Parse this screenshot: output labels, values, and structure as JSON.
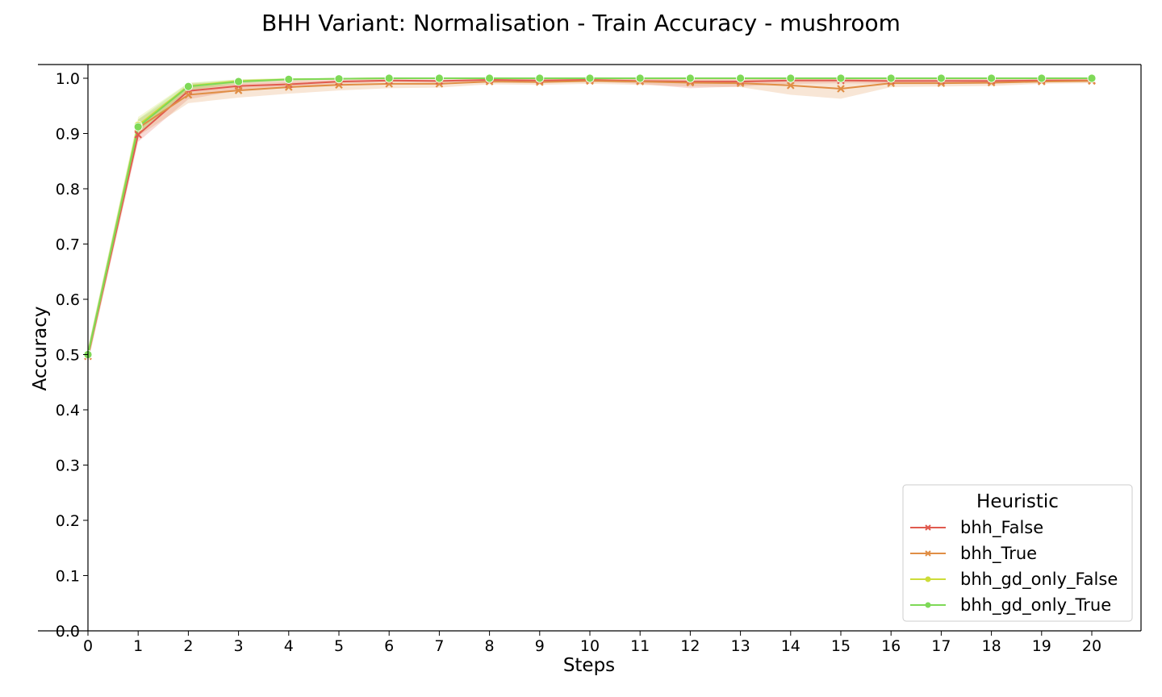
{
  "chart_data": {
    "type": "line",
    "title": "BHH Variant: Normalisation - Train Accuracy - mushroom",
    "xlabel": "Steps",
    "ylabel": "Accuracy",
    "xlim": [
      0,
      20
    ],
    "ylim": [
      0.0,
      1.0
    ],
    "x": [
      0,
      1,
      2,
      3,
      4,
      5,
      6,
      7,
      8,
      9,
      10,
      11,
      12,
      13,
      14,
      15,
      16,
      17,
      18,
      19,
      20
    ],
    "xticks": [
      "0",
      "1",
      "2",
      "3",
      "4",
      "5",
      "6",
      "7",
      "8",
      "9",
      "10",
      "11",
      "12",
      "13",
      "14",
      "15",
      "16",
      "17",
      "18",
      "19",
      "20"
    ],
    "yticks": [
      "0.0",
      "0.1",
      "0.2",
      "0.3",
      "0.4",
      "0.5",
      "0.6",
      "0.7",
      "0.8",
      "0.9",
      "1.0"
    ],
    "grid": false,
    "legend": {
      "title": "Heuristic",
      "placement": "lower-right"
    },
    "series": [
      {
        "name": "bhh_False",
        "color": "#e05a4f",
        "marker": "x",
        "values": [
          0.497,
          0.898,
          0.977,
          0.986,
          0.989,
          0.994,
          0.996,
          0.995,
          0.997,
          0.996,
          0.997,
          0.995,
          0.994,
          0.994,
          0.996,
          0.996,
          0.995,
          0.995,
          0.995,
          0.996,
          0.996
        ],
        "lower": [
          0.485,
          0.885,
          0.962,
          0.978,
          0.982,
          0.99,
          0.993,
          0.992,
          0.995,
          0.993,
          0.994,
          0.99,
          0.982,
          0.985,
          0.99,
          0.991,
          0.99,
          0.99,
          0.99,
          0.993,
          0.993
        ],
        "upper": [
          0.51,
          0.912,
          0.99,
          0.994,
          0.996,
          0.998,
          0.999,
          0.998,
          0.999,
          0.999,
          0.999,
          0.999,
          0.999,
          0.999,
          0.999,
          0.999,
          0.999,
          0.999,
          0.999,
          0.999,
          0.999
        ]
      },
      {
        "name": "bhh_True",
        "color": "#e08e45",
        "marker": "x",
        "values": [
          0.497,
          0.91,
          0.97,
          0.978,
          0.984,
          0.988,
          0.99,
          0.99,
          0.994,
          0.993,
          0.995,
          0.994,
          0.992,
          0.991,
          0.987,
          0.981,
          0.991,
          0.991,
          0.992,
          0.994,
          0.995
        ],
        "lower": [
          0.485,
          0.895,
          0.955,
          0.965,
          0.972,
          0.978,
          0.982,
          0.983,
          0.989,
          0.988,
          0.99,
          0.988,
          0.985,
          0.984,
          0.97,
          0.963,
          0.984,
          0.985,
          0.986,
          0.99,
          0.991
        ],
        "upper": [
          0.51,
          0.925,
          0.984,
          0.99,
          0.994,
          0.996,
          0.997,
          0.997,
          0.998,
          0.998,
          0.999,
          0.999,
          0.998,
          0.998,
          0.999,
          0.999,
          0.998,
          0.998,
          0.998,
          0.998,
          0.999
        ]
      },
      {
        "name": "bhh_gd_only_False",
        "color": "#cddc39",
        "marker": "o",
        "values": [
          0.5,
          0.915,
          0.986,
          0.995,
          0.998,
          0.999,
          1.0,
          1.0,
          1.0,
          1.0,
          1.0,
          1.0,
          1.0,
          1.0,
          1.0,
          1.0,
          1.0,
          1.0,
          1.0,
          1.0,
          1.0
        ],
        "lower": [
          0.49,
          0.902,
          0.98,
          0.991,
          0.996,
          0.998,
          0.999,
          0.999,
          0.999,
          0.999,
          0.999,
          0.999,
          0.999,
          0.999,
          0.999,
          0.999,
          0.999,
          0.999,
          0.999,
          0.999,
          0.999
        ],
        "upper": [
          0.512,
          0.93,
          0.992,
          0.998,
          1.0,
          1.0,
          1.0,
          1.0,
          1.0,
          1.0,
          1.0,
          1.0,
          1.0,
          1.0,
          1.0,
          1.0,
          1.0,
          1.0,
          1.0,
          1.0,
          1.0
        ]
      },
      {
        "name": "bhh_gd_only_True",
        "color": "#7ed957",
        "marker": "o",
        "values": [
          0.5,
          0.912,
          0.985,
          0.994,
          0.998,
          0.999,
          1.0,
          1.0,
          1.0,
          1.0,
          1.0,
          1.0,
          1.0,
          1.0,
          1.0,
          1.0,
          1.0,
          1.0,
          1.0,
          1.0,
          1.0
        ],
        "lower": [
          0.49,
          0.9,
          0.978,
          0.99,
          0.996,
          0.998,
          0.999,
          0.999,
          0.999,
          0.999,
          0.999,
          0.999,
          0.999,
          0.999,
          0.999,
          0.999,
          0.999,
          0.999,
          0.999,
          0.999,
          0.999
        ],
        "upper": [
          0.512,
          0.926,
          0.991,
          0.998,
          1.0,
          1.0,
          1.0,
          1.0,
          1.0,
          1.0,
          1.0,
          1.0,
          1.0,
          1.0,
          1.0,
          1.0,
          1.0,
          1.0,
          1.0,
          1.0,
          1.0
        ]
      }
    ]
  }
}
